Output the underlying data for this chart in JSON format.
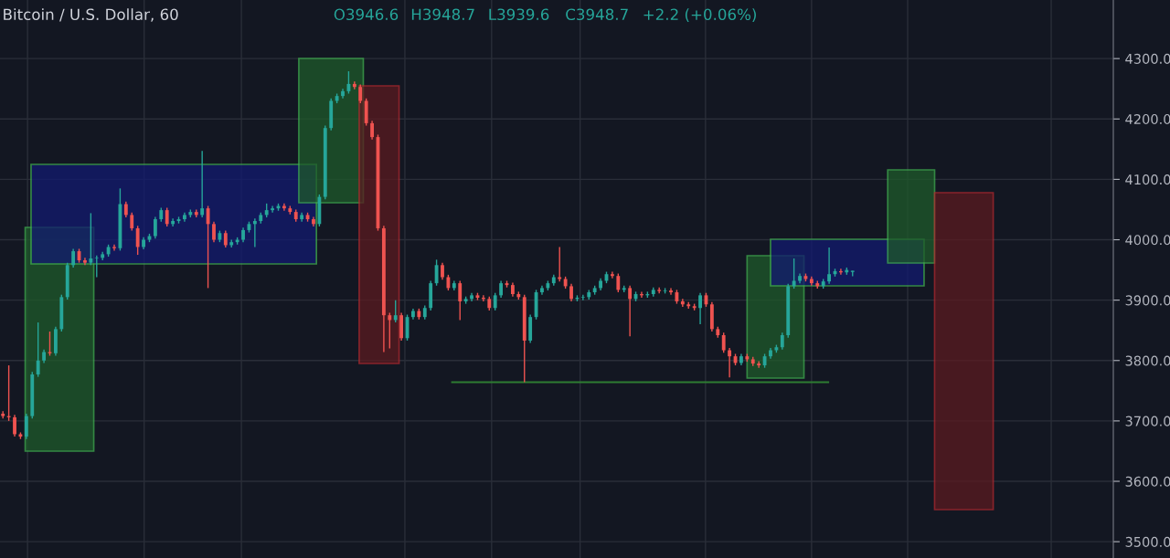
{
  "chart_data": {
    "type": "candlestick",
    "title": "Bitcoin / U.S. Dollar, 60",
    "annotations": [
      "O3946.6",
      "H3948.7",
      "L3939.6",
      "C3948.7",
      "+2.2 (+0.06%)"
    ],
    "categories": [
      null,
      null,
      null,
      null,
      null,
      null,
      null,
      null,
      null,
      null,
      null,
      null,
      null,
      null,
      null,
      null,
      null,
      null,
      null,
      null,
      null,
      null,
      null,
      null,
      null,
      null,
      null,
      null,
      null,
      null,
      null,
      null,
      null,
      null,
      null,
      null,
      null,
      null,
      null,
      null,
      null,
      null,
      null,
      null,
      null,
      null,
      null,
      null,
      null,
      null,
      null,
      null,
      null,
      null,
      null,
      null,
      null,
      null,
      null,
      null,
      null,
      null,
      null,
      null,
      null,
      null,
      null,
      null,
      null,
      null,
      null,
      null,
      null,
      null,
      null,
      null,
      null,
      null,
      null,
      null,
      null,
      null,
      null,
      null,
      null,
      null,
      null,
      null,
      null,
      null,
      null,
      null,
      null,
      null,
      null,
      null,
      null,
      null,
      null,
      null,
      null,
      null,
      null,
      null,
      null,
      null,
      null,
      null,
      null,
      null,
      null,
      null,
      null,
      null,
      null,
      null,
      null,
      null,
      null,
      null,
      null,
      null,
      null,
      null,
      null,
      null,
      null,
      null,
      null,
      null,
      null,
      null,
      null,
      null,
      null,
      null,
      null,
      null,
      null,
      null,
      null,
      null,
      null,
      null,
      null,
      null,
      null,
      null,
      null,
      null,
      null,
      null,
      null,
      null,
      null,
      null,
      null,
      null,
      null,
      null,
      null,
      null,
      null,
      null,
      null,
      null,
      null,
      null,
      null,
      null,
      null,
      null,
      null,
      null,
      null,
      null,
      null,
      null,
      null,
      null,
      null,
      null,
      null,
      null,
      null,
      null,
      null,
      null,
      null,
      null
    ],
    "ref_lines": [
      {
        "axis": "y",
        "value": 3764,
        "color": "#2e7d32"
      }
    ],
    "ohlc": [
      [
        3712,
        3716,
        3704,
        3708
      ],
      [
        3708,
        3792,
        3700,
        3706
      ],
      [
        3706,
        3710,
        3674,
        3678
      ],
      [
        3678,
        3681,
        3670,
        3674
      ],
      [
        3674,
        3712,
        3670,
        3708
      ],
      [
        3708,
        3781,
        3704,
        3777
      ],
      [
        3777,
        3863,
        3773,
        3800
      ],
      [
        3800,
        3818,
        3796,
        3814
      ],
      [
        3814,
        3848,
        3808,
        3812
      ],
      [
        3812,
        3856,
        3808,
        3852
      ],
      [
        3852,
        3909,
        3848,
        3905
      ],
      [
        3905,
        3962,
        3901,
        3958
      ],
      [
        3958,
        3985,
        3954,
        3981
      ],
      [
        3981,
        3985,
        3962,
        3966
      ],
      [
        3966,
        3970,
        3958,
        3962
      ],
      [
        3962,
        4044,
        3958,
        3969
      ],
      [
        3969,
        3974,
        3938,
        3970
      ],
      [
        3970,
        3980,
        3966,
        3976
      ],
      [
        3976,
        3992,
        3972,
        3988
      ],
      [
        3988,
        3992,
        3982,
        3986
      ],
      [
        3986,
        4085,
        3982,
        4059
      ],
      [
        4059,
        4063,
        4037,
        4041
      ],
      [
        4041,
        4045,
        4015,
        4019
      ],
      [
        4019,
        4023,
        3975,
        3988
      ],
      [
        3988,
        4004,
        3984,
        4000
      ],
      [
        4000,
        4010,
        3996,
        4006
      ],
      [
        4006,
        4038,
        4002,
        4034
      ],
      [
        4034,
        4053,
        4030,
        4049
      ],
      [
        4049,
        4053,
        4022,
        4026
      ],
      [
        4026,
        4035,
        4022,
        4031
      ],
      [
        4031,
        4038,
        4027,
        4034
      ],
      [
        4034,
        4045,
        4030,
        4041
      ],
      [
        4041,
        4050,
        4037,
        4046
      ],
      [
        4046,
        4050,
        4037,
        4041
      ],
      [
        4041,
        4147,
        4037,
        4052
      ],
      [
        4052,
        4056,
        3920,
        4026
      ],
      [
        4026,
        4030,
        3996,
        4000
      ],
      [
        4000,
        4015,
        3996,
        4011
      ],
      [
        4011,
        4015,
        3987,
        3991
      ],
      [
        3991,
        4000,
        3987,
        3996
      ],
      [
        3996,
        4004,
        3992,
        4000
      ],
      [
        4000,
        4020,
        3996,
        4016
      ],
      [
        4016,
        4030,
        4012,
        4026
      ],
      [
        4026,
        4035,
        3988,
        4031
      ],
      [
        4031,
        4045,
        4027,
        4041
      ],
      [
        4041,
        4060,
        4037,
        4049
      ],
      [
        4049,
        4056,
        4045,
        4052
      ],
      [
        4052,
        4060,
        4048,
        4056
      ],
      [
        4056,
        4060,
        4048,
        4052
      ],
      [
        4052,
        4056,
        4042,
        4046
      ],
      [
        4046,
        4050,
        4030,
        4034
      ],
      [
        4034,
        4045,
        4030,
        4041
      ],
      [
        4041,
        4045,
        4030,
        4034
      ],
      [
        4034,
        4038,
        4022,
        4026
      ],
      [
        4026,
        4075,
        4022,
        4071
      ],
      [
        4071,
        4189,
        4067,
        4185
      ],
      [
        4185,
        4234,
        4181,
        4230
      ],
      [
        4230,
        4242,
        4226,
        4238
      ],
      [
        4238,
        4250,
        4234,
        4246
      ],
      [
        4246,
        4279,
        4242,
        4258
      ],
      [
        4258,
        4262,
        4249,
        4253
      ],
      [
        4253,
        4257,
        4226,
        4230
      ],
      [
        4230,
        4234,
        4189,
        4193
      ],
      [
        4193,
        4197,
        4166,
        4170
      ],
      [
        4170,
        4174,
        4015,
        4019
      ],
      [
        4019,
        4023,
        3814,
        3875
      ],
      [
        3875,
        3879,
        3820,
        3867
      ],
      [
        3867,
        3900,
        3863,
        3875
      ],
      [
        3875,
        3879,
        3833,
        3837
      ],
      [
        3837,
        3876,
        3833,
        3872
      ],
      [
        3872,
        3886,
        3868,
        3882
      ],
      [
        3882,
        3886,
        3868,
        3872
      ],
      [
        3872,
        3891,
        3868,
        3887
      ],
      [
        3887,
        3932,
        3883,
        3928
      ],
      [
        3928,
        3967,
        3924,
        3958
      ],
      [
        3958,
        3962,
        3934,
        3938
      ],
      [
        3938,
        3942,
        3916,
        3920
      ],
      [
        3920,
        3932,
        3916,
        3928
      ],
      [
        3928,
        3932,
        3867,
        3898
      ],
      [
        3898,
        3906,
        3894,
        3902
      ],
      [
        3902,
        3912,
        3898,
        3908
      ],
      [
        3908,
        3912,
        3900,
        3904
      ],
      [
        3904,
        3908,
        3898,
        3902
      ],
      [
        3902,
        3906,
        3883,
        3887
      ],
      [
        3887,
        3912,
        3883,
        3908
      ],
      [
        3908,
        3932,
        3904,
        3928
      ],
      [
        3928,
        3932,
        3921,
        3925
      ],
      [
        3925,
        3929,
        3906,
        3910
      ],
      [
        3910,
        3914,
        3901,
        3905
      ],
      [
        3905,
        3909,
        3764,
        3833
      ],
      [
        3833,
        3876,
        3829,
        3872
      ],
      [
        3872,
        3917,
        3868,
        3913
      ],
      [
        3913,
        3924,
        3909,
        3920
      ],
      [
        3920,
        3932,
        3916,
        3928
      ],
      [
        3928,
        3942,
        3924,
        3938
      ],
      [
        3938,
        3988,
        3931,
        3935
      ],
      [
        3935,
        3939,
        3919,
        3923
      ],
      [
        3923,
        3927,
        3898,
        3902
      ],
      [
        3902,
        3908,
        3898,
        3904
      ],
      [
        3904,
        3909,
        3900,
        3905
      ],
      [
        3905,
        3917,
        3901,
        3913
      ],
      [
        3913,
        3924,
        3909,
        3920
      ],
      [
        3920,
        3936,
        3916,
        3932
      ],
      [
        3932,
        3947,
        3928,
        3943
      ],
      [
        3943,
        3947,
        3936,
        3940
      ],
      [
        3940,
        3944,
        3913,
        3917
      ],
      [
        3917,
        3924,
        3913,
        3920
      ],
      [
        3920,
        3924,
        3840,
        3902
      ],
      [
        3902,
        3914,
        3898,
        3910
      ],
      [
        3910,
        3914,
        3904,
        3908
      ],
      [
        3908,
        3914,
        3904,
        3910
      ],
      [
        3910,
        3921,
        3906,
        3917
      ],
      [
        3917,
        3921,
        3911,
        3915
      ],
      [
        3915,
        3920,
        3911,
        3916
      ],
      [
        3916,
        3920,
        3909,
        3913
      ],
      [
        3913,
        3917,
        3894,
        3898
      ],
      [
        3898,
        3902,
        3889,
        3893
      ],
      [
        3893,
        3897,
        3886,
        3890
      ],
      [
        3890,
        3894,
        3883,
        3887
      ],
      [
        3887,
        3912,
        3860,
        3908
      ],
      [
        3908,
        3912,
        3889,
        3893
      ],
      [
        3893,
        3897,
        3848,
        3852
      ],
      [
        3852,
        3856,
        3838,
        3842
      ],
      [
        3842,
        3846,
        3813,
        3817
      ],
      [
        3817,
        3821,
        3772,
        3807
      ],
      [
        3807,
        3811,
        3792,
        3796
      ],
      [
        3796,
        3811,
        3792,
        3807
      ],
      [
        3807,
        3811,
        3798,
        3802
      ],
      [
        3802,
        3806,
        3791,
        3795
      ],
      [
        3795,
        3799,
        3788,
        3792
      ],
      [
        3792,
        3811,
        3788,
        3807
      ],
      [
        3807,
        3821,
        3803,
        3817
      ],
      [
        3817,
        3826,
        3813,
        3822
      ],
      [
        3822,
        3846,
        3818,
        3842
      ],
      [
        3842,
        3927,
        3838,
        3923
      ],
      [
        3923,
        3969,
        3919,
        3932
      ],
      [
        3932,
        3944,
        3928,
        3940
      ],
      [
        3940,
        3944,
        3931,
        3935
      ],
      [
        3935,
        3939,
        3924,
        3928
      ],
      [
        3928,
        3932,
        3919,
        3923
      ],
      [
        3923,
        3935,
        3919,
        3931
      ],
      [
        3931,
        3987,
        3927,
        3943
      ],
      [
        3943,
        3952,
        3939,
        3948
      ],
      [
        3948,
        3952,
        3942,
        3946
      ],
      [
        3946,
        3954,
        3942,
        3950
      ],
      [
        3946.6,
        3948.7,
        3939.6,
        3948.7
      ],
      null,
      null,
      null,
      null,
      null,
      null,
      null,
      null,
      null,
      null,
      null,
      null,
      null,
      null,
      null,
      null,
      null,
      null,
      null,
      null,
      null,
      null,
      null,
      null,
      null,
      null,
      null,
      null,
      null,
      null,
      null,
      null,
      null,
      null,
      null,
      null,
      null,
      null,
      null,
      null,
      null,
      null,
      null,
      null
    ],
    "ylim": [
      3473,
      4397
    ],
    "yticks": [
      {
        "value": 3500,
        "label": "3500.0"
      },
      {
        "value": 3600,
        "label": "3600.0"
      },
      {
        "value": 3700,
        "label": "3700.0"
      },
      {
        "value": 3800,
        "label": "3800.0"
      },
      {
        "value": 3900,
        "label": "3900.0"
      },
      {
        "value": 4000,
        "label": "4000.0"
      },
      {
        "value": 4100,
        "label": "4100.0"
      },
      {
        "value": 4200,
        "label": "4200.0"
      },
      {
        "value": 4300,
        "label": "4300.0"
      }
    ],
    "tick_labels": "y",
    "grid": true
  }
}
